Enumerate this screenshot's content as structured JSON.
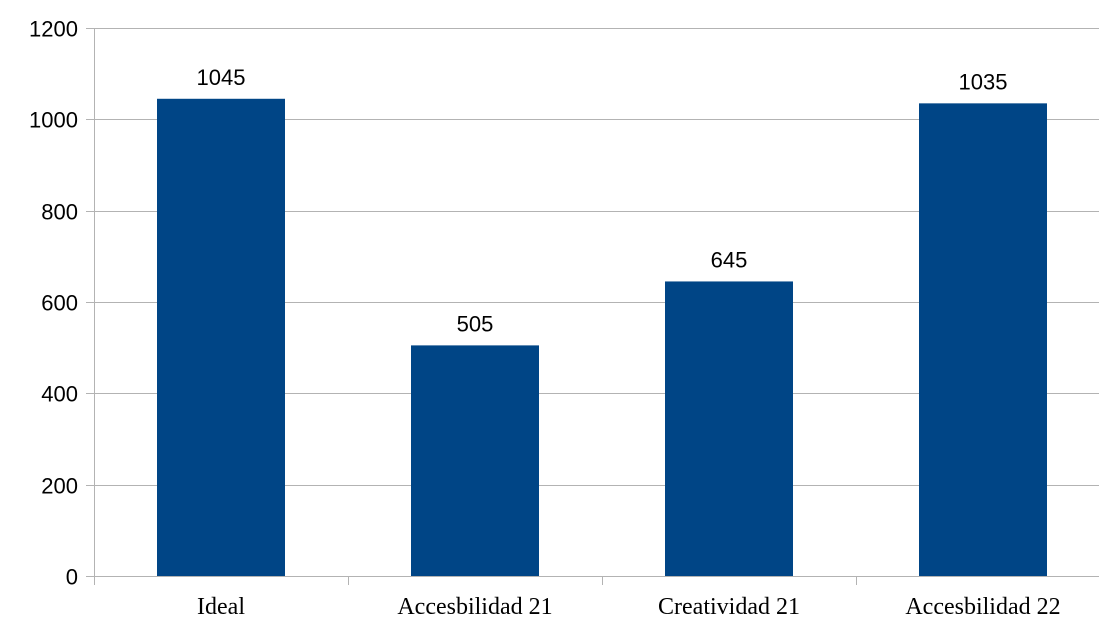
{
  "chart_data": {
    "type": "bar",
    "categories": [
      "Ideal",
      "Accesbilidad 21",
      "Creatividad 21",
      "Accesbilidad 22"
    ],
    "values": [
      1045,
      505,
      645,
      1035
    ],
    "data_labels": [
      "1045",
      "505",
      "645",
      "1035"
    ],
    "yticks": [
      0,
      200,
      400,
      600,
      800,
      1000,
      1200
    ],
    "ylim": [
      0,
      1200
    ],
    "grid": true,
    "legend": "none",
    "title": "",
    "xlabel": "",
    "ylabel": "",
    "colors": {
      "bar": "#004586",
      "grid": "#b3b3b3"
    }
  }
}
